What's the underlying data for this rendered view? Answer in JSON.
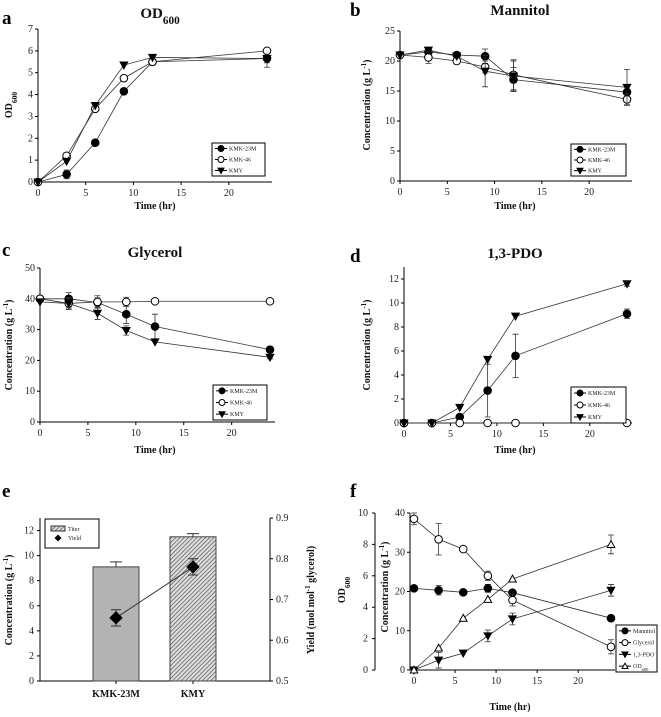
{
  "chart_data": [
    {
      "id": "a",
      "letter": "a",
      "type": "line",
      "title": "OD",
      "title_sub": "600",
      "xlabel": "Time (hr)",
      "ylabel": "OD",
      "ylabel_sub": "600",
      "xlim": [
        0,
        24
      ],
      "xticks": [
        0,
        5,
        10,
        15,
        20
      ],
      "ylim": [
        0,
        7
      ],
      "yticks": [
        0,
        1,
        2,
        3,
        4,
        5,
        6,
        7
      ],
      "x": [
        0,
        3,
        6,
        9,
        12,
        24
      ],
      "series": [
        {
          "name": "KMK-23M",
          "marker": "filled-circle",
          "values": [
            0,
            0.35,
            1.8,
            4.15,
            5.5,
            5.65
          ],
          "err": [
            0,
            0.2,
            0,
            0,
            0,
            0.4
          ]
        },
        {
          "name": "KMK-46",
          "marker": "open-circle",
          "values": [
            0,
            1.2,
            3.35,
            4.75,
            5.5,
            6.0
          ],
          "err": [
            0,
            0,
            0,
            0,
            0.1,
            0
          ]
        },
        {
          "name": "KMY",
          "marker": "filled-triangle-down",
          "values": [
            0,
            0.95,
            3.5,
            5.35,
            5.7,
            5.65
          ],
          "err": [
            0,
            0,
            0,
            0,
            0,
            0.2
          ]
        }
      ],
      "legend": "bottom-right"
    },
    {
      "id": "b",
      "letter": "b",
      "type": "line",
      "title": "Mannitol",
      "xlabel": "Time (hr)",
      "ylabel": "Concentration (g L",
      "ylabel_sup": "-1",
      "ylabel_end": ")",
      "xlim": [
        0,
        24
      ],
      "xticks": [
        0,
        5,
        10,
        15,
        20
      ],
      "ylim": [
        0,
        25
      ],
      "yticks": [
        0,
        5,
        10,
        15,
        20,
        25
      ],
      "x": [
        0,
        3,
        6,
        9,
        12,
        24
      ],
      "series": [
        {
          "name": "KMK-23M",
          "marker": "filled-circle",
          "values": [
            21,
            21.5,
            21,
            20.8,
            16.9,
            14.8
          ],
          "err": [
            0,
            0.3,
            0.4,
            1.2,
            2,
            1.2
          ]
        },
        {
          "name": "KMK-46",
          "marker": "open-circle",
          "values": [
            21,
            20.6,
            20,
            19,
            17.7,
            13.6
          ],
          "err": [
            0,
            1,
            0.5,
            1,
            2.5,
            0.9
          ]
        },
        {
          "name": "KMY",
          "marker": "filled-triangle-down",
          "values": [
            21,
            21.8,
            20.8,
            18.3,
            17.5,
            15.6
          ],
          "err": [
            0,
            0.3,
            0.3,
            2.6,
            2.5,
            3
          ]
        }
      ],
      "legend": "bottom-right"
    },
    {
      "id": "c",
      "letter": "c",
      "type": "line",
      "title": "Glycerol",
      "xlabel": "Time (hr)",
      "ylabel": "Concentration (g L",
      "ylabel_sup": "-1",
      "ylabel_end": ")",
      "xlim": [
        0,
        24
      ],
      "xticks": [
        0,
        5,
        10,
        15,
        20
      ],
      "ylim": [
        0,
        50
      ],
      "yticks": [
        0,
        10,
        20,
        30,
        40,
        50
      ],
      "x": [
        0,
        3,
        6,
        9,
        12,
        24
      ],
      "series": [
        {
          "name": "KMK-23M",
          "marker": "filled-circle",
          "values": [
            40,
            40,
            38.8,
            35,
            31,
            23.5
          ],
          "err": [
            0,
            2,
            1.5,
            3,
            4,
            1
          ]
        },
        {
          "name": "KMK-46",
          "marker": "open-circle",
          "values": [
            40,
            38.5,
            39,
            39,
            39.2,
            39.2
          ],
          "err": [
            0,
            1.5,
            2,
            1.5,
            0,
            0
          ]
        },
        {
          "name": "KMY",
          "marker": "filled-triangle-down",
          "values": [
            39,
            38.5,
            35.3,
            29.7,
            26,
            21
          ],
          "err": [
            0,
            2,
            2,
            1.5,
            0,
            0.5
          ]
        }
      ],
      "legend": "bottom-right"
    },
    {
      "id": "d",
      "letter": "d",
      "type": "line",
      "title": "1,3-PDO",
      "xlabel": "Time (hr)",
      "ylabel": "Concentration (g L",
      "ylabel_sup": "-1",
      "ylabel_end": ")",
      "xlim": [
        0,
        24
      ],
      "xticks": [
        0,
        5,
        10,
        15,
        20
      ],
      "ylim": [
        0,
        13
      ],
      "yticks": [
        0,
        2,
        4,
        6,
        8,
        10,
        12
      ],
      "x": [
        0,
        3,
        6,
        9,
        12,
        24
      ],
      "series": [
        {
          "name": "KMK-23M",
          "marker": "filled-circle",
          "values": [
            0,
            0,
            0.5,
            2.7,
            5.6,
            9.1
          ],
          "err": [
            0,
            0,
            0,
            2.2,
            1.8,
            0.4
          ]
        },
        {
          "name": "KMK-46",
          "marker": "open-circle",
          "values": [
            0,
            0,
            0,
            0,
            0,
            0
          ],
          "err": [
            0,
            0,
            0,
            0,
            0,
            0
          ]
        },
        {
          "name": "KMY",
          "marker": "filled-triangle-down",
          "values": [
            0,
            0,
            1.3,
            5.3,
            8.9,
            11.6
          ],
          "err": [
            0,
            0,
            0,
            0,
            0,
            0.2
          ]
        }
      ],
      "legend": "bottom-right"
    },
    {
      "id": "e",
      "letter": "e",
      "type": "bar",
      "categories": [
        "KMK-23M",
        "KMY"
      ],
      "ylabel": "Concentration (g L",
      "ylabel_sup": "-1",
      "ylabel_end": ")",
      "y2label": "Yield (mol mol",
      "y2label_sup": "-1",
      "y2label_end": " glycerol)",
      "ylim": [
        0,
        13
      ],
      "yticks": [
        0,
        2,
        4,
        6,
        8,
        10,
        12
      ],
      "y2lim": [
        0.5,
        0.9
      ],
      "y2ticks": [
        "0.5",
        "0.6",
        "0.7",
        "0.8",
        "0.9"
      ],
      "titer": {
        "name": "Titer",
        "values": [
          9.1,
          11.5
        ],
        "err": [
          0.4,
          0.25
        ]
      },
      "yield": {
        "name": "Yield",
        "values": [
          0.655,
          0.78
        ],
        "err": [
          0.02,
          0.02
        ]
      },
      "legend": "top-left"
    },
    {
      "id": "f",
      "letter": "f",
      "type": "line",
      "xlabel": "Time (hr)",
      "ylabel": "Concentration (g L",
      "ylabel_sup": "-1",
      "ylabel_end": ")",
      "y2label": "OD",
      "y2label_sub": "600",
      "xlim": [
        0,
        24
      ],
      "xticks": [
        0,
        5,
        10,
        15,
        20
      ],
      "ylim": [
        0,
        40
      ],
      "yticks": [
        0,
        10,
        20,
        30,
        40
      ],
      "y2lim": [
        0,
        10
      ],
      "y2ticks": [
        0,
        2,
        4,
        6,
        8,
        10
      ],
      "x": [
        0,
        3,
        6,
        9,
        12,
        24
      ],
      "series": [
        {
          "name": "Mannitol",
          "marker": "filled-circle",
          "axis": "conc",
          "values": [
            20.8,
            20.3,
            19.8,
            20.8,
            19.7,
            13.2
          ],
          "err": [
            0,
            1.2,
            0,
            1,
            0,
            0
          ]
        },
        {
          "name": "Glycerol",
          "marker": "open-circle",
          "axis": "conc",
          "values": [
            38.5,
            33.3,
            30.8,
            24,
            17.8,
            5.9
          ],
          "err": [
            1.5,
            4,
            0,
            1.2,
            1.5,
            1.8
          ]
        },
        {
          "name": "1,3-PDO",
          "marker": "filled-triangle-down",
          "axis": "conc",
          "values": [
            0,
            2.5,
            4.3,
            8.7,
            13,
            20.3
          ],
          "err": [
            0,
            2,
            0,
            1.5,
            1.5,
            1.5
          ]
        },
        {
          "name": "OD",
          "name_sub": "600",
          "marker": "open-triangle-up",
          "axis": "od",
          "values": [
            0,
            1.4,
            3.3,
            4.5,
            5.8,
            8.0
          ],
          "err": [
            0,
            0,
            0,
            0,
            0,
            0.6
          ]
        }
      ],
      "legend": "right"
    }
  ]
}
